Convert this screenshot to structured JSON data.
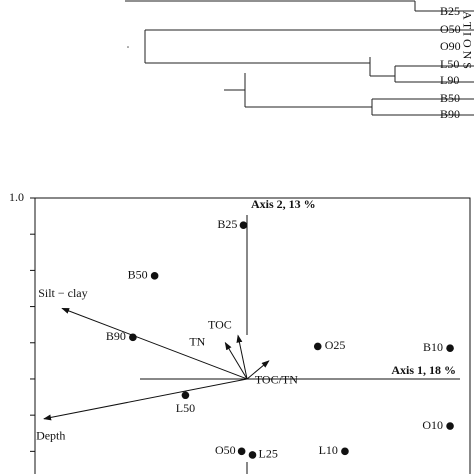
{
  "dendrogram": {
    "leaves": [
      "B25",
      "O50",
      "O90",
      "L50",
      "L90",
      "B50",
      "B90"
    ],
    "side_title": "A T I O N S"
  },
  "chart_data": {
    "type": "scatter",
    "labels": [
      "B25",
      "B50",
      "B90",
      "O25",
      "B10",
      "L50",
      "O10",
      "O50",
      "L25",
      "L10"
    ],
    "x": [
      -0.02,
      -0.51,
      -0.63,
      0.39,
      1.12,
      -0.34,
      1.12,
      -0.03,
      0.03,
      0.54
    ],
    "values": [
      0.85,
      0.57,
      0.23,
      0.18,
      0.17,
      -0.09,
      -0.26,
      -0.4,
      -0.42,
      -0.4
    ],
    "vectors": [
      {
        "name": "Silt − clay",
        "x": -1.02,
        "y": 0.39
      },
      {
        "name": "TN",
        "x": -0.12,
        "y": 0.2
      },
      {
        "name": "TOC",
        "x": -0.05,
        "y": 0.24
      },
      {
        "name": "TOC/TN",
        "x": 0.12,
        "y": 0.1
      },
      {
        "name": "Depth",
        "x": -1.12,
        "y": -0.22
      }
    ],
    "axis1_label": "Axis 1, 18 %",
    "axis2_label": "Axis 2, 13 %",
    "xlim": [
      -1.17,
      1.23
    ],
    "ylim": [
      -0.55,
      1.0
    ],
    "yticks": [
      {
        "value": 1,
        "label": "1.0"
      }
    ],
    "minor_yticks": [
      0.8,
      0.6,
      0.4,
      0.2,
      0,
      -0.2,
      -0.4
    ],
    "color": "#111111"
  }
}
